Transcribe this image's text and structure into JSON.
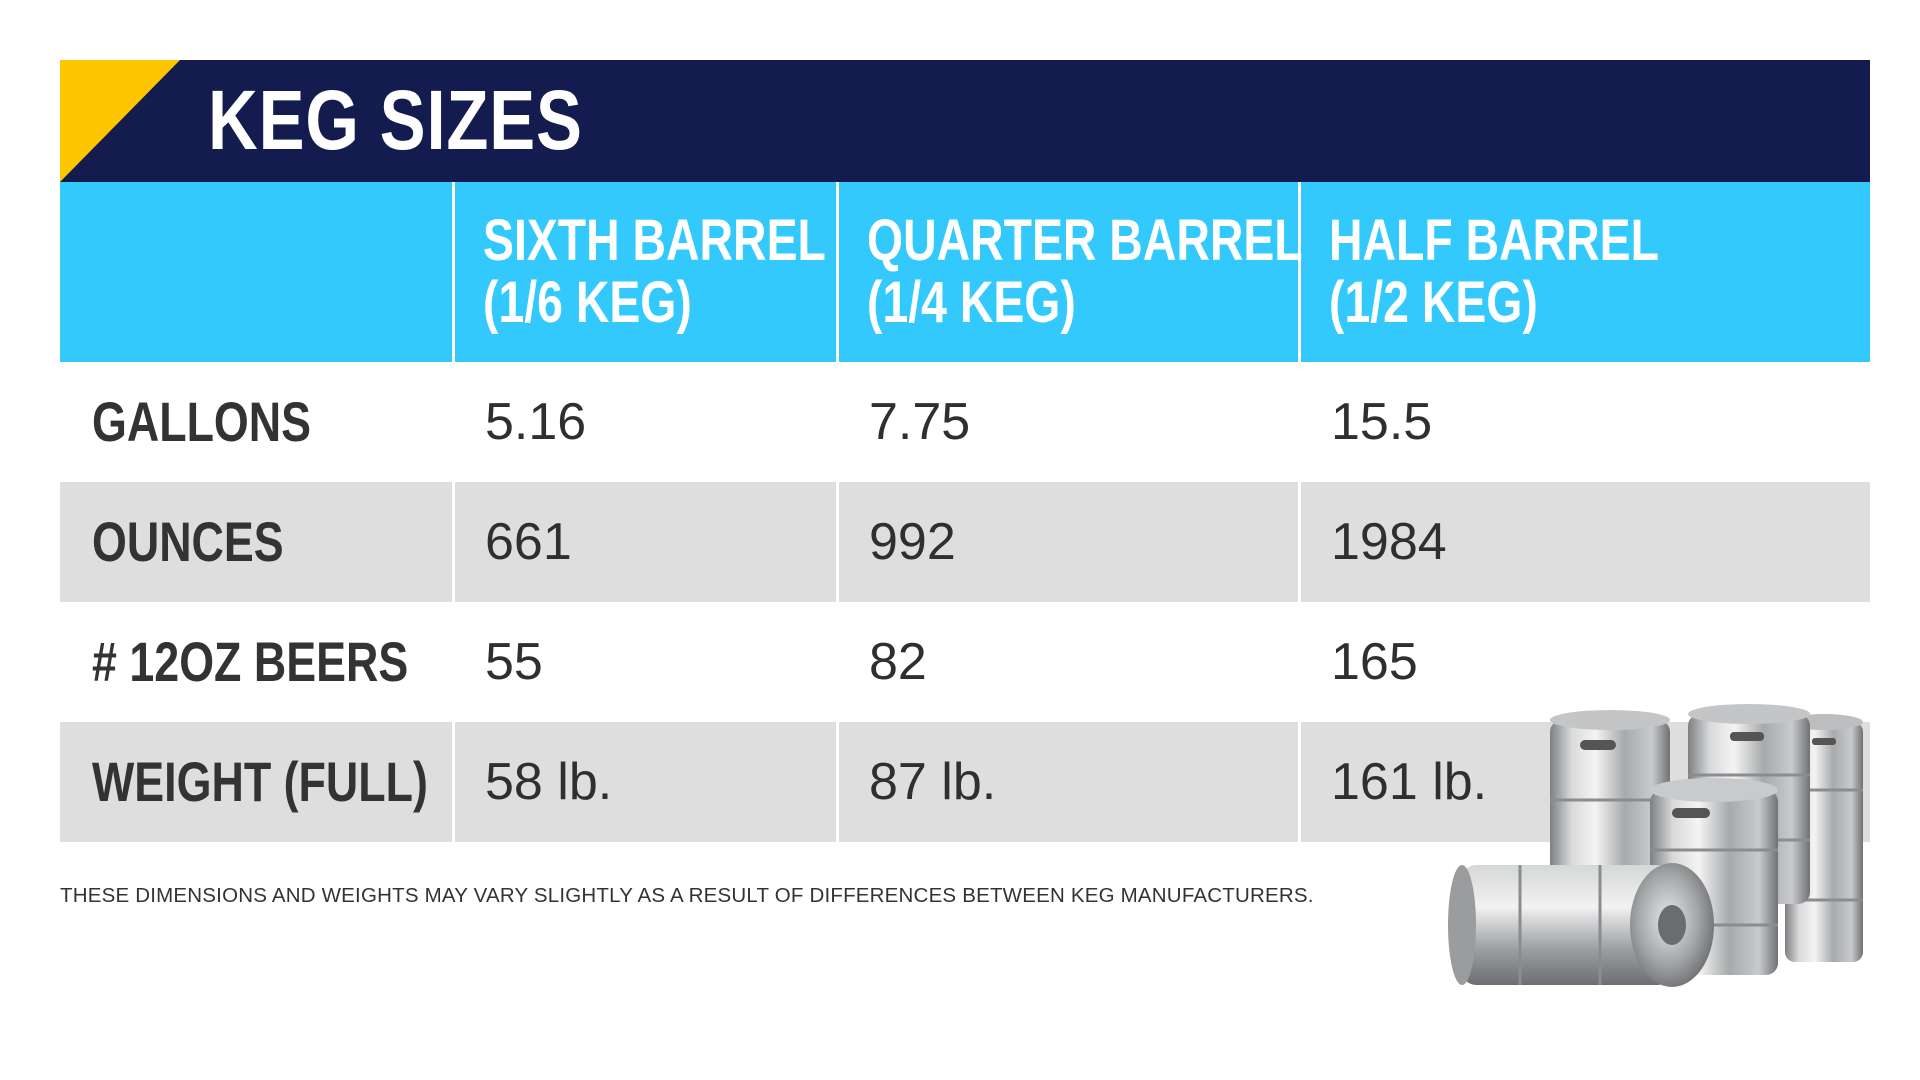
{
  "title": "KEG SIZES",
  "colors": {
    "title_band": "#141c4f",
    "title_accent": "#fdc600",
    "header_band": "#33c9fc",
    "shaded_row": "#dedede"
  },
  "footnote": "THESE DIMENSIONS AND WEIGHTS MAY VARY SLIGHTLY AS A RESULT OF DIFFERENCES BETWEEN KEG MANUFACTURERS.",
  "illustration": "stainless-steel-beer-kegs",
  "chart_data": {
    "type": "table",
    "title": "KEG SIZES",
    "columns": [
      {
        "line1": "SIXTH BARREL",
        "line2": "(1/6 KEG)"
      },
      {
        "line1": "QUARTER BARREL",
        "line2": "(1/4 KEG)"
      },
      {
        "line1": "HALF BARREL",
        "line2": "(1/2 KEG)"
      }
    ],
    "rows": [
      {
        "label": "GALLONS",
        "values": [
          "5.16",
          "7.75",
          "15.5"
        ]
      },
      {
        "label": "OUNCES",
        "values": [
          "661",
          "992",
          "1984"
        ]
      },
      {
        "label": "# 12OZ BEERS",
        "values": [
          "55",
          "82",
          "165"
        ]
      },
      {
        "label": "WEIGHT (FULL)",
        "values": [
          "58 lb.",
          "87 lb.",
          "161 lb."
        ]
      }
    ]
  }
}
